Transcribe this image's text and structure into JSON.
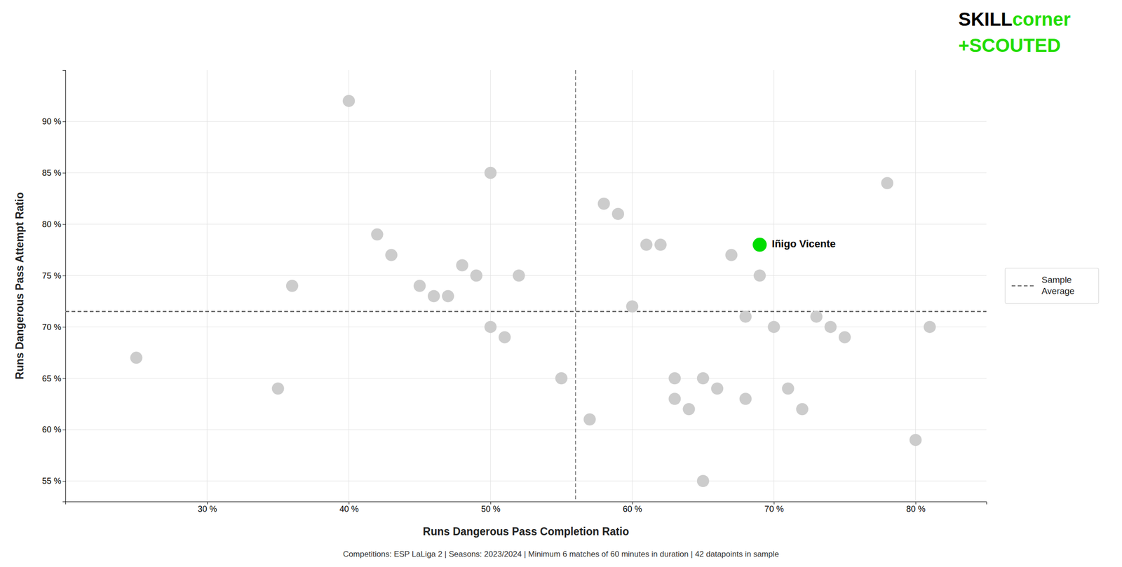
{
  "chart_data": {
    "type": "scatter",
    "x_label": "Runs Dangerous Pass Completion Ratio",
    "y_label": "Runs Dangerous Pass Attempt Ratio",
    "footnote": "Competitions: ESP LaLiga 2 | Seasons: 2023/2024 | Minimum 6 matches of 60 minutes in duration | 42 datapoints in sample",
    "color": "#cccccc",
    "x": [
      25,
      35,
      36,
      40,
      42,
      43,
      45,
      46,
      47,
      48,
      49,
      50,
      50,
      51,
      52,
      55,
      57,
      58,
      59,
      60,
      61,
      62,
      63,
      63,
      64,
      65,
      65,
      66,
      67,
      68,
      68,
      69,
      70,
      71,
      72,
      73,
      74,
      75,
      78,
      80,
      81
    ],
    "values": [
      67,
      64,
      74,
      92,
      79,
      77,
      74,
      73,
      73,
      76,
      75,
      70,
      85,
      69,
      75,
      65,
      61,
      82,
      81,
      72,
      78,
      78,
      65,
      63,
      62,
      55,
      65,
      64,
      77,
      63,
      71,
      75,
      70,
      64,
      62,
      71,
      70,
      69,
      84,
      59,
      70
    ],
    "annotations": [
      {
        "text": "Iñigo Vicente",
        "x": 69,
        "y": 78,
        "color": "#00dd00"
      }
    ],
    "reference_lines": [
      {
        "axis": "y",
        "value": 71.5,
        "color": "#555555",
        "line_style": "dashed",
        "name": "Sample\nAverage"
      },
      {
        "axis": "x",
        "value": 56,
        "color": "#888888",
        "line_style": "dashed"
      }
    ],
    "xlim": [
      20,
      85
    ],
    "ylim": [
      53,
      95
    ],
    "xticks": [
      {
        "value": 30,
        "label": "30 %"
      },
      {
        "value": 40,
        "label": "40 %"
      },
      {
        "value": 50,
        "label": "50 %"
      },
      {
        "value": 60,
        "label": "60 %"
      },
      {
        "value": 70,
        "label": "70 %"
      },
      {
        "value": 80,
        "label": "80 %"
      }
    ],
    "yticks": [
      {
        "value": 55,
        "label": "55 %"
      },
      {
        "value": 60,
        "label": "60 %"
      },
      {
        "value": 65,
        "label": "65 %"
      },
      {
        "value": 70,
        "label": "70 %"
      },
      {
        "value": 75,
        "label": "75 %"
      },
      {
        "value": 80,
        "label": "80 %"
      },
      {
        "value": 85,
        "label": "85 %"
      },
      {
        "value": 90,
        "label": "90 %"
      }
    ],
    "grid": true,
    "legend": "right",
    "logo": [
      [
        {
          "text": "SKILL",
          "color": "#000000"
        },
        {
          "text": "corner",
          "color": "#22dd00"
        }
      ],
      [
        {
          "text": "+SCOUTED",
          "color": "#22dd00"
        }
      ]
    ]
  }
}
